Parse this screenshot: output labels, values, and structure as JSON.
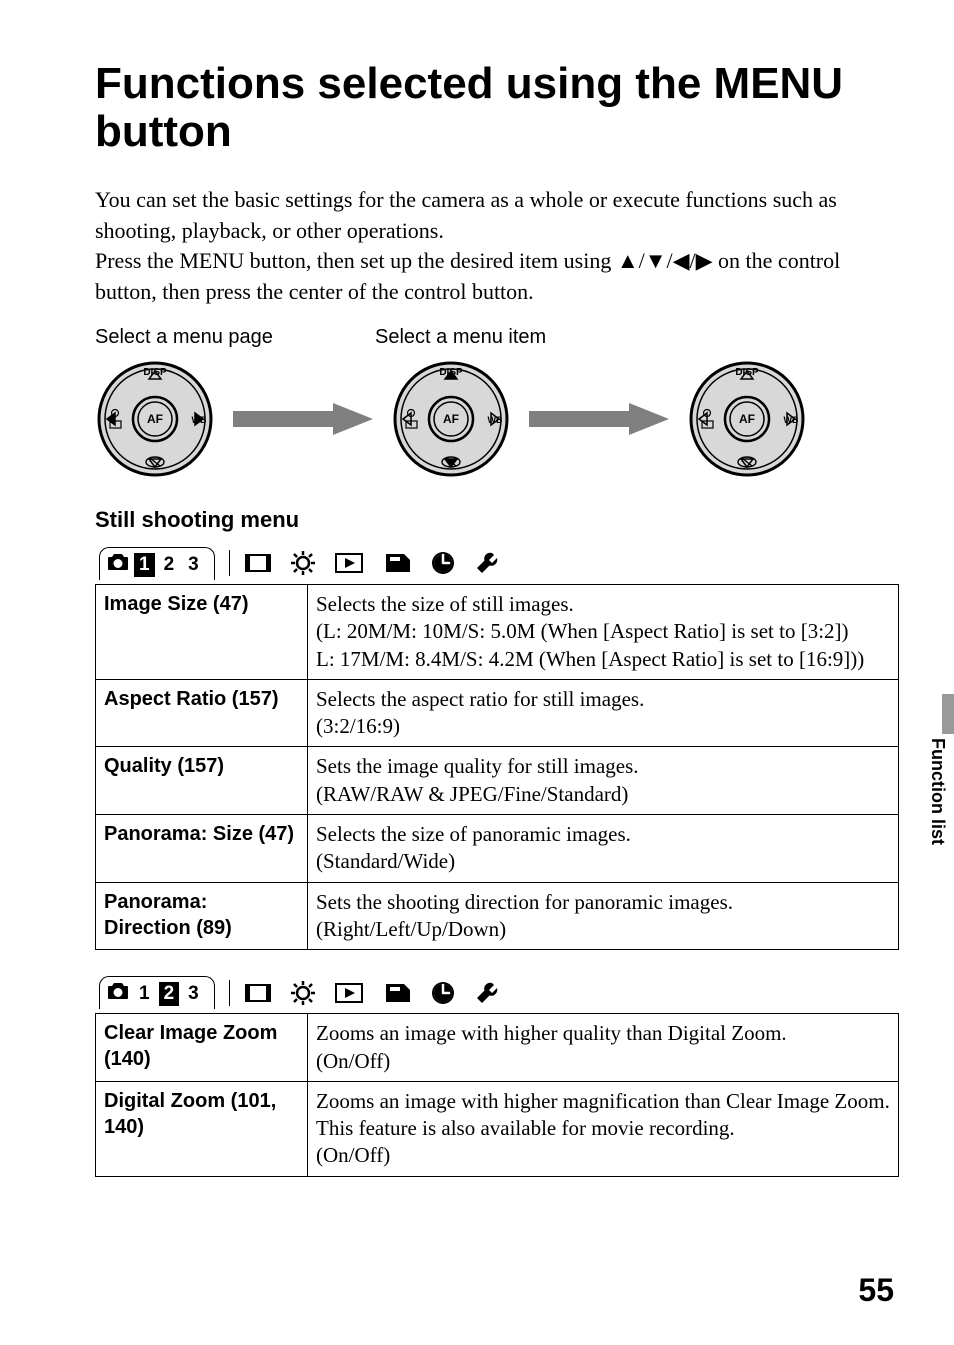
{
  "title": "Functions selected using the MENU button",
  "intro_html": "You can set the basic settings for the camera as a whole or execute functions such as shooting, playback, or other operations.<br>Press the MENU button, then set up the desired item using ▲/▼/◀/▶ on the control button, then press the center of the control button.",
  "labels": {
    "select_page": "Select a menu page",
    "select_item": "Select a menu item"
  },
  "dial": {
    "top": "DISP",
    "left_icons": "",
    "center": "AF",
    "right": "WB"
  },
  "section_heading": "Still shooting menu",
  "tabbar1": {
    "nums": [
      "1",
      "2",
      "3"
    ],
    "active_index": 0
  },
  "tabbar2": {
    "nums": [
      "1",
      "2",
      "3"
    ],
    "active_index": 1
  },
  "table1": {
    "rows": [
      {
        "name": "Image Size (47)",
        "desc": "Selects the size of still images.<br>(L: 20M/M: 10M/S: 5.0M (When [Aspect Ratio] is set to [3:2])<br>L: 17M/M: 8.4M/S: 4.2M (When [Aspect Ratio] is set to [16:9]))"
      },
      {
        "name": "Aspect Ratio (157)",
        "desc": "Selects the aspect ratio for still images.<br>(3:2/16:9)"
      },
      {
        "name": "Quality (157)",
        "desc": "Sets the image quality for still images.<br>(RAW/RAW & JPEG/Fine/Standard)"
      },
      {
        "name": "Panorama: Size (47)",
        "desc": "Selects the size of panoramic images.<br>(Standard/Wide)"
      },
      {
        "name": "Panorama: Direction (89)",
        "desc": "Sets the shooting direction for panoramic images.<br>(Right/Left/Up/Down)"
      }
    ]
  },
  "table2": {
    "rows": [
      {
        "name": "Clear Image Zoom (140)",
        "desc": "Zooms an image with higher quality than Digital Zoom.<br>(On/Off)"
      },
      {
        "name": "Digital Zoom (101, 140)",
        "desc": "Zooms an image with higher magnification than Clear Image Zoom. This feature is also available for movie recording.<br>(On/Off)"
      }
    ]
  },
  "side_tab": "Function list",
  "page_number": "55",
  "colors": {
    "text": "#000000",
    "bg": "#ffffff",
    "side_gray": "#9a9a9a",
    "dial_fill": "#d8d8d8"
  }
}
